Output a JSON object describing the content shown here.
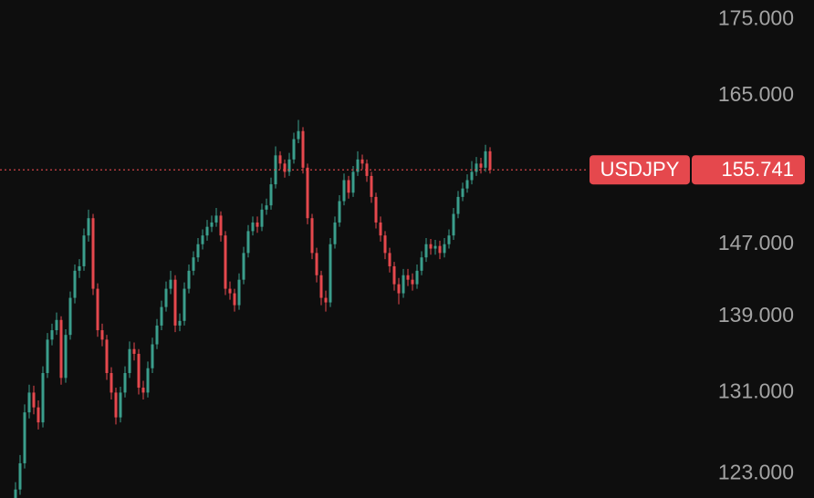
{
  "chart_data": {
    "type": "candlestick",
    "log_scale": true,
    "grid": false,
    "up_color": "#3b9e8c",
    "down_color": "#e5484d",
    "ylim": [
      120.7,
      177.7
    ],
    "yticks": [
      {
        "value": 175,
        "label": "175.000"
      },
      {
        "value": 165,
        "label": "165.000"
      },
      {
        "value": 147,
        "label": "147.000"
      },
      {
        "value": 139,
        "label": "139.000"
      },
      {
        "value": 131,
        "label": "131.000"
      },
      {
        "value": 123,
        "label": "123.000"
      }
    ],
    "last_price": {
      "symbol": "USDJPY",
      "value": 155.741,
      "color": "#e5484d"
    },
    "ohlc": [
      [
        120.5,
        122.2,
        120,
        121.5
      ],
      [
        121.5,
        124.8,
        121,
        124
      ],
      [
        124,
        129.8,
        123.5,
        129
      ],
      [
        129,
        131.8,
        128.4,
        131
      ],
      [
        131,
        131.7,
        128.8,
        129.5
      ],
      [
        129.5,
        130.2,
        127.3,
        128
      ],
      [
        128,
        133.7,
        127.5,
        133
      ],
      [
        133,
        137.2,
        132.5,
        136.5
      ],
      [
        136.5,
        138.2,
        135.9,
        137.5
      ],
      [
        137.5,
        139.4,
        137,
        138.6
      ],
      [
        138.6,
        139,
        131.8,
        132.5
      ],
      [
        132.5,
        137.6,
        132,
        137
      ],
      [
        137,
        141.7,
        136.5,
        141
      ],
      [
        141,
        144.7,
        140.4,
        144
      ],
      [
        144,
        145.3,
        143.2,
        144.5
      ],
      [
        144.5,
        148.8,
        144,
        148
      ],
      [
        148,
        151,
        147.3,
        150
      ],
      [
        150,
        150.5,
        141.3,
        142
      ],
      [
        142,
        142.6,
        136.8,
        137.5
      ],
      [
        137.5,
        138.2,
        135.8,
        136.5
      ],
      [
        136.5,
        137,
        132.3,
        133
      ],
      [
        133,
        133.6,
        130.3,
        131
      ],
      [
        131,
        131.5,
        127.8,
        128.5
      ],
      [
        128.5,
        131.6,
        128,
        131
      ],
      [
        131,
        133.7,
        130.5,
        133
      ],
      [
        133,
        136.3,
        132.5,
        135.5
      ],
      [
        135.5,
        136.2,
        134.3,
        135
      ],
      [
        135,
        135.5,
        130.8,
        131.5
      ],
      [
        131.5,
        132.2,
        130.3,
        131
      ],
      [
        131,
        134.2,
        130.5,
        133.5
      ],
      [
        133.5,
        136.7,
        133,
        136
      ],
      [
        136,
        138.7,
        135.5,
        138
      ],
      [
        138,
        140.7,
        137.5,
        140
      ],
      [
        140,
        142.8,
        139.5,
        142
      ],
      [
        142,
        144,
        141.4,
        143
      ],
      [
        143,
        143.5,
        137.3,
        138
      ],
      [
        138,
        139.3,
        137.4,
        138.5
      ],
      [
        138.5,
        142.7,
        138,
        142
      ],
      [
        142,
        144.7,
        141.5,
        144
      ],
      [
        144,
        146.2,
        143.5,
        145.5
      ],
      [
        145.5,
        147.7,
        145,
        147
      ],
      [
        147,
        148.7,
        146.4,
        148
      ],
      [
        148,
        149.8,
        147.4,
        149
      ],
      [
        149,
        150.3,
        148.4,
        149.5
      ],
      [
        149.5,
        151.2,
        149,
        150.3
      ],
      [
        150.3,
        150.8,
        147.3,
        148
      ],
      [
        148,
        148.5,
        141.3,
        142
      ],
      [
        142,
        142.8,
        140.8,
        141.5
      ],
      [
        141.5,
        142,
        139.5,
        140.2
      ],
      [
        140.2,
        143.7,
        139.7,
        143
      ],
      [
        143,
        146.7,
        142.5,
        146
      ],
      [
        146,
        149.2,
        145.5,
        148.5
      ],
      [
        148.5,
        150.2,
        148,
        149.5
      ],
      [
        149.5,
        150.2,
        148.3,
        149
      ],
      [
        149,
        151.7,
        148.5,
        151
      ],
      [
        151,
        152.3,
        150.4,
        151.5
      ],
      [
        151.5,
        154.8,
        151,
        154
      ],
      [
        154,
        158.6,
        153.5,
        157.5
      ],
      [
        157.5,
        158,
        155.8,
        156.5
      ],
      [
        156.5,
        157,
        154.8,
        155.5
      ],
      [
        155.5,
        157.8,
        155,
        157
      ],
      [
        157,
        160.3,
        156.5,
        159.5
      ],
      [
        159.5,
        161.9,
        159,
        160.5
      ],
      [
        160.5,
        161,
        155.3,
        156
      ],
      [
        156,
        156.5,
        149.3,
        150
      ],
      [
        150,
        150.5,
        145.3,
        146
      ],
      [
        146,
        146.6,
        142.7,
        143.5
      ],
      [
        143.5,
        144,
        140.2,
        141
      ],
      [
        141,
        141.8,
        139.5,
        140.5
      ],
      [
        140.5,
        147.7,
        140,
        147
      ],
      [
        147,
        150.2,
        146.5,
        149.5
      ],
      [
        149.5,
        152.7,
        149,
        152
      ],
      [
        152,
        155.3,
        151.5,
        154.5
      ],
      [
        154.5,
        155,
        152.3,
        153
      ],
      [
        153,
        156.2,
        152.5,
        155.5
      ],
      [
        155.5,
        158,
        155,
        157
      ],
      [
        157,
        157.6,
        155.8,
        156.5
      ],
      [
        156.5,
        157,
        154.3,
        155
      ],
      [
        155,
        155.5,
        151.8,
        152.5
      ],
      [
        152.5,
        153,
        148.8,
        149.5
      ],
      [
        149.5,
        150.2,
        147.3,
        148
      ],
      [
        148,
        148.5,
        145.3,
        146
      ],
      [
        146,
        146.6,
        143.8,
        144.5
      ],
      [
        144.5,
        145,
        141.8,
        142.5
      ],
      [
        142.5,
        143.2,
        140.3,
        141.5
      ],
      [
        141.5,
        144.2,
        141,
        143.5
      ],
      [
        143.5,
        144.2,
        142.3,
        143
      ],
      [
        143,
        143.7,
        141.8,
        142.5
      ],
      [
        142.5,
        144.7,
        142,
        144
      ],
      [
        144,
        146.2,
        143.5,
        145.5
      ],
      [
        145.5,
        147.7,
        145,
        147
      ],
      [
        147,
        147.6,
        145.8,
        146.5
      ],
      [
        146.5,
        147.5,
        145.8,
        146.8
      ],
      [
        146.8,
        147.4,
        145.3,
        146
      ],
      [
        146,
        147.7,
        145.5,
        147
      ],
      [
        147,
        148.7,
        146.5,
        148
      ],
      [
        148,
        151.2,
        147.5,
        150.5
      ],
      [
        150.5,
        153.2,
        150,
        152.5
      ],
      [
        152.5,
        154.2,
        152,
        153.5
      ],
      [
        153.5,
        155.2,
        153,
        154.5
      ],
      [
        154.5,
        156.8,
        154,
        155.5
      ],
      [
        155.5,
        157.3,
        155,
        156.5
      ],
      [
        156.5,
        157.2,
        155.3,
        156
      ],
      [
        156,
        158.8,
        155.5,
        158
      ],
      [
        158,
        158.5,
        155.3,
        155.741
      ]
    ]
  }
}
